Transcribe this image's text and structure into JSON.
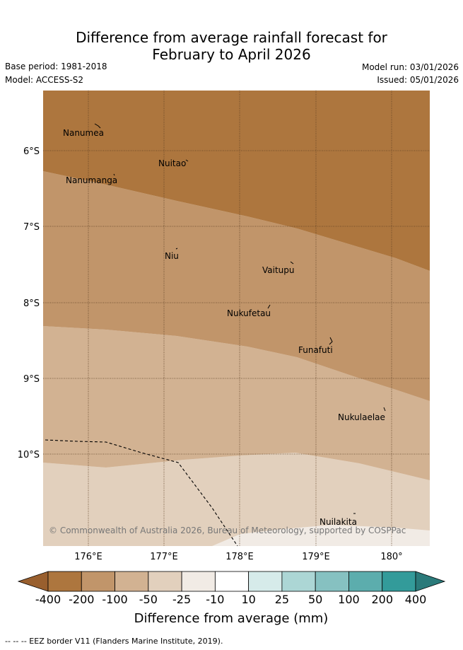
{
  "title": {
    "line1": "Difference from average rainfall forecast for",
    "line2": "February to April 2026"
  },
  "meta": {
    "base_period": "Base period: 1981-2018",
    "model": "Model: ACCESS-S2",
    "model_run": "Model run: 03/01/2026",
    "issued": "Issued: 05/01/2026"
  },
  "map": {
    "lon_labels": [
      "176°E",
      "177°E",
      "178°E",
      "179°E",
      "180°"
    ],
    "lat_labels": [
      "6°S",
      "7°S",
      "8°S",
      "9°S",
      "10°S"
    ],
    "places": [
      {
        "name": "Nanumea",
        "lon": 176.2,
        "lat": -5.68
      },
      {
        "name": "Nuitao",
        "lon": 177.3,
        "lat": -6.12
      },
      {
        "name": "Nanumanga",
        "lon": 176.32,
        "lat": -6.3
      },
      {
        "name": "Niu",
        "lon": 177.16,
        "lat": -7.3
      },
      {
        "name": "Vaitupu",
        "lon": 178.68,
        "lat": -7.48
      },
      {
        "name": "Nukufetau",
        "lon": 178.38,
        "lat": -8.02
      },
      {
        "name": "Funafuti",
        "lon": 179.2,
        "lat": -8.5
      },
      {
        "name": "Nukulaelae",
        "lon": 179.83,
        "lat": -9.39
      },
      {
        "name": "Nuilakita",
        "lon": 179.5,
        "lat": -10.78
      }
    ],
    "copyright": "© Commonwealth of Australia 2026, Bureau of Meteorology, supported by COSPPac"
  },
  "legend": {
    "ticks": [
      "-400",
      "-200",
      "-100",
      "-50",
      "-25",
      "-10",
      "10",
      "25",
      "50",
      "100",
      "200",
      "400"
    ],
    "colors": [
      "#ad763e",
      "#c1956a",
      "#d2b292",
      "#e2d0bd",
      "#f1ebe5",
      "#ffffff",
      "#d6ebea",
      "#acd6d5",
      "#86c1c1",
      "#5cadad",
      "#339b9a"
    ],
    "low_color": "#995f2e",
    "high_color": "#2a7a7a",
    "label": "Difference from average (mm)"
  },
  "footnote": "--  --  -- EEZ border V11 (Flanders Marine Institute, 2019)."
}
